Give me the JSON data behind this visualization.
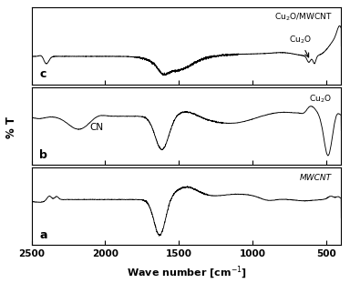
{
  "xlabel": "Wave number [cm$^{-1}$]",
  "ylabel": "% T",
  "xlim_left": 2500,
  "xlim_right": 400,
  "xticks": [
    2500,
    2000,
    1500,
    1000,
    500
  ],
  "line_color": "#000000",
  "bg_color": "#ffffff",
  "label_c": "Cu$_2$O/MWCNT",
  "label_b": "Cu$_2$O",
  "label_a": "MWCNT",
  "cn_label": "CN",
  "cu2o_arrow_label": "Cu$_2$O"
}
